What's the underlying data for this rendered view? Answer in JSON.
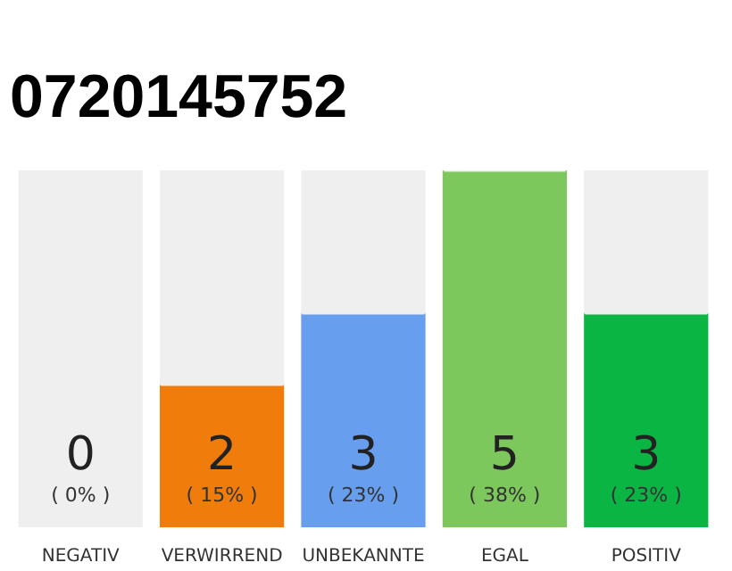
{
  "chart_data": {
    "type": "bar",
    "title": "0720145752",
    "stacked": true,
    "categories": [
      "NEGATIV",
      "VERWIRREND",
      "UNBEKANNTE",
      "EGAL",
      "POSITIV"
    ],
    "series": [
      {
        "colors": [
          "#e8173a",
          "#f07c0b",
          "#679eee",
          "#7cc85c",
          "#0bb544"
        ],
        "values": [
          0,
          2,
          3,
          5,
          3
        ],
        "value_labels": [
          "0",
          "2",
          "3",
          "5",
          "3"
        ]
      },
      {
        "color": "#efefef",
        "values": [
          5,
          3,
          2,
          0,
          2
        ]
      }
    ],
    "ylim": [
      0,
      5
    ],
    "tick_labels": "x",
    "grid": false,
    "annotations": [
      "( 0% )",
      "( 15% )",
      "( 23% )",
      "( 38% )",
      "( 23% )"
    ]
  }
}
